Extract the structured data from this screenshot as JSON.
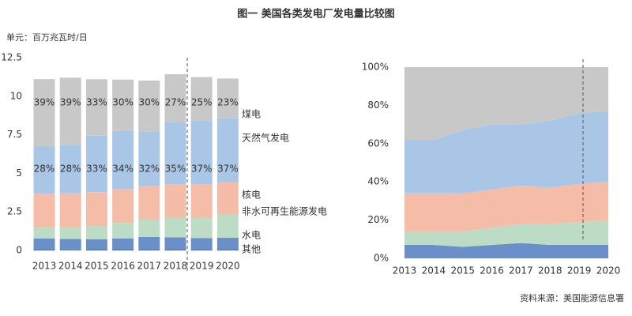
{
  "title": "图一  美国各类发电厂发电量比较图",
  "source": "资料来源：美国能源信息署",
  "chart_data": [
    {
      "type": "stacked_bar",
      "y_label": "单元：百万兆瓦时/日",
      "categories": [
        "2013",
        "2014",
        "2015",
        "2016",
        "2017",
        "2018",
        "2019",
        "2020"
      ],
      "ylim": [
        0,
        12.5
      ],
      "yticks": [
        0,
        2.5,
        5,
        7.5,
        10,
        12.5
      ],
      "series": [
        {
          "name": "其他",
          "color": "#4a6aa5",
          "values": [
            0.05,
            0.04,
            0.05,
            0.05,
            0.05,
            0.05,
            0.05,
            0.05
          ]
        },
        {
          "name": "水电",
          "color": "#6b8fc9",
          "values": [
            0.73,
            0.7,
            0.68,
            0.73,
            0.82,
            0.8,
            0.75,
            0.78
          ]
        },
        {
          "name": "非水可再生能源发电",
          "color": "#bcdcc5",
          "values": [
            0.7,
            0.78,
            0.85,
            1.0,
            1.13,
            1.25,
            1.3,
            1.5
          ]
        },
        {
          "name": "核电",
          "color": "#f5bda8",
          "values": [
            2.2,
            2.18,
            2.2,
            2.2,
            2.2,
            2.2,
            2.2,
            2.1
          ]
        },
        {
          "name": "天然气发电",
          "color": "#a9c6e6",
          "values": [
            3.1,
            3.13,
            3.66,
            3.77,
            3.52,
            4.03,
            4.14,
            4.14
          ],
          "share_labels": [
            "28%",
            "28%",
            "33%",
            "34%",
            "32%",
            "35%",
            "37%",
            "37%"
          ]
        },
        {
          "name": "煤电",
          "color": "#c8c8c8",
          "values": [
            4.33,
            4.37,
            3.66,
            3.33,
            3.3,
            3.1,
            2.8,
            2.58
          ],
          "share_labels": [
            "39%",
            "39%",
            "33%",
            "30%",
            "30%",
            "27%",
            "25%",
            "23%"
          ]
        }
      ]
    },
    {
      "type": "stacked_area_percent",
      "categories": [
        "2013",
        "2014",
        "2015",
        "2016",
        "2017",
        "2018",
        "2019",
        "2020"
      ],
      "ylim": [
        0,
        100
      ],
      "yticks": [
        {
          "value": 0,
          "label": "0%"
        },
        {
          "value": 20,
          "label": "20%"
        },
        {
          "value": 40,
          "label": "40%"
        },
        {
          "value": 60,
          "label": "60%"
        },
        {
          "value": 80,
          "label": "80%"
        },
        {
          "value": 100,
          "label": "100%"
        }
      ],
      "series": [
        {
          "color": "#6b8fc9",
          "values": [
            7,
            7,
            6,
            7,
            8,
            7,
            7,
            7
          ]
        },
        {
          "color": "#bcdcc5",
          "values": [
            7,
            7,
            8,
            9,
            10,
            11,
            12,
            13
          ]
        },
        {
          "color": "#f5bda8",
          "values": [
            20,
            20,
            20,
            20,
            20,
            19,
            20,
            20
          ]
        },
        {
          "color": "#a9c6e6",
          "values": [
            28,
            28,
            33,
            34,
            32,
            35,
            37,
            37
          ]
        },
        {
          "color": "#c8c8c8",
          "values": [
            38,
            38,
            33,
            30,
            30,
            28,
            24,
            23
          ]
        }
      ]
    }
  ]
}
